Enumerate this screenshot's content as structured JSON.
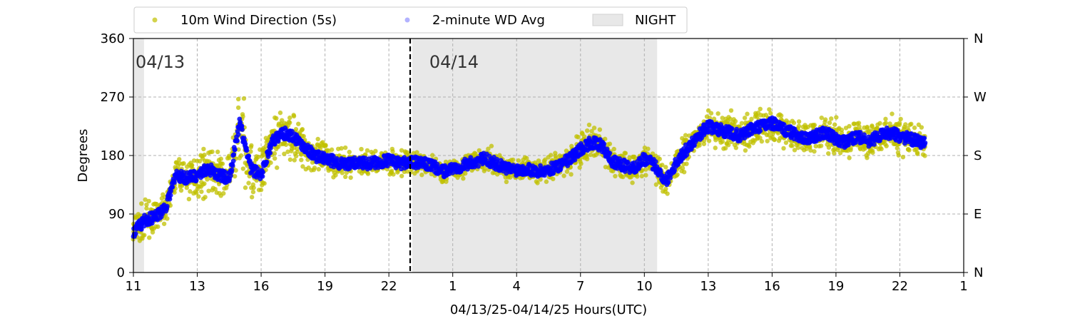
{
  "chart_data": {
    "type": "scatter",
    "xlabel": "04/13/25-04/14/25  Hours(UTC)",
    "ylabel": "Degrees",
    "x_unit": "hours",
    "xlim": [
      11,
      49
    ],
    "ylim": [
      0,
      360
    ],
    "x_ticks": [
      {
        "x": 11,
        "label": "11"
      },
      {
        "x": 14,
        "label": "13"
      },
      {
        "x": 17,
        "label": "16"
      },
      {
        "x": 20,
        "label": "19"
      },
      {
        "x": 23,
        "label": "22"
      },
      {
        "x": 26,
        "label": "1"
      },
      {
        "x": 29,
        "label": "4"
      },
      {
        "x": 32,
        "label": "7"
      },
      {
        "x": 35,
        "label": "10"
      },
      {
        "x": 38,
        "label": "13"
      },
      {
        "x": 41,
        "label": "16"
      },
      {
        "x": 44,
        "label": "19"
      },
      {
        "x": 47,
        "label": "22"
      },
      {
        "x": 50,
        "label": "1"
      }
    ],
    "y_ticks": [
      0,
      90,
      180,
      270,
      360
    ],
    "right_ticks": [
      {
        "y": 0,
        "label": "N"
      },
      {
        "y": 90,
        "label": "E"
      },
      {
        "y": 180,
        "label": "S"
      },
      {
        "y": 270,
        "label": "W"
      },
      {
        "y": 360,
        "label": "N"
      }
    ],
    "grid": true,
    "legend_position": "top",
    "night_bands": [
      [
        11,
        11.5
      ],
      [
        24.1,
        35.6
      ]
    ],
    "day_marker": {
      "x": 24.0,
      "style": "dashed"
    },
    "day_labels": [
      {
        "x": 11.1,
        "label": "04/13"
      },
      {
        "x": 24.9,
        "label": "04/14"
      }
    ],
    "colors": {
      "wd": "#c0c000",
      "avg": "#0000ff",
      "night": "#e8e8e8"
    },
    "series": [
      {
        "name": "10m Wind Direction (5s)",
        "marker": "circle",
        "x": [
          11.0,
          11.5,
          12.0,
          12.5,
          13.0,
          13.5,
          14.0,
          14.5,
          15.0,
          15.5,
          16.0,
          16.5,
          17.0,
          17.5,
          18.0,
          18.5,
          19.0,
          19.5,
          20.0,
          20.5,
          21.0,
          21.5,
          22.0,
          22.5,
          23.0,
          23.5,
          24.0,
          24.5,
          25.0,
          25.5,
          26.0,
          26.5,
          27.0,
          27.5,
          28.0,
          28.5,
          29.0,
          29.5,
          30.0,
          30.5,
          31.0,
          31.5,
          32.0,
          32.5,
          33.0,
          33.5,
          34.0,
          34.5,
          35.0,
          35.5,
          36.0,
          36.5,
          37.0,
          37.5,
          38.0,
          38.5,
          39.0,
          39.5,
          40.0,
          40.5,
          41.0,
          41.5,
          42.0,
          42.5,
          43.0,
          43.5,
          44.0,
          44.5,
          45.0,
          45.5,
          46.0,
          46.5,
          47.0,
          47.5,
          48.0
        ],
        "y": [
          60,
          80,
          85,
          100,
          150,
          145,
          150,
          160,
          150,
          145,
          230,
          160,
          150,
          200,
          215,
          210,
          195,
          180,
          175,
          170,
          165,
          170,
          168,
          170,
          172,
          168,
          170,
          168,
          165,
          155,
          160,
          165,
          170,
          175,
          168,
          160,
          158,
          160,
          155,
          158,
          165,
          175,
          190,
          200,
          195,
          170,
          165,
          160,
          175,
          165,
          140,
          170,
          190,
          210,
          225,
          220,
          215,
          210,
          220,
          225,
          230,
          220,
          215,
          205,
          210,
          215,
          205,
          200,
          210,
          200,
          210,
          215,
          210,
          205,
          200
        ],
        "spread": [
          35,
          30,
          25,
          20,
          30,
          30,
          35,
          40,
          35,
          40,
          60,
          60,
          50,
          45,
          40,
          40,
          35,
          30,
          30,
          25,
          22,
          20,
          20,
          20,
          20,
          22,
          20,
          20,
          18,
          18,
          18,
          20,
          20,
          22,
          20,
          20,
          18,
          18,
          18,
          20,
          22,
          25,
          30,
          30,
          28,
          28,
          25,
          25,
          25,
          25,
          25,
          30,
          30,
          30,
          30,
          30,
          30,
          28,
          30,
          30,
          32,
          30,
          30,
          28,
          28,
          28,
          30,
          28,
          28,
          28,
          28,
          28,
          28,
          25,
          25
        ]
      },
      {
        "name": "2-minute WD Avg",
        "marker": "circle",
        "x": [
          11.0,
          11.5,
          12.0,
          12.5,
          13.0,
          13.5,
          14.0,
          14.5,
          15.0,
          15.5,
          16.0,
          16.5,
          17.0,
          17.5,
          18.0,
          18.5,
          19.0,
          19.5,
          20.0,
          20.5,
          21.0,
          21.5,
          22.0,
          22.5,
          23.0,
          23.5,
          24.0,
          24.5,
          25.0,
          25.5,
          26.0,
          26.5,
          27.0,
          27.5,
          28.0,
          28.5,
          29.0,
          29.5,
          30.0,
          30.5,
          31.0,
          31.5,
          32.0,
          32.5,
          33.0,
          33.5,
          34.0,
          34.5,
          35.0,
          35.5,
          36.0,
          36.5,
          37.0,
          37.5,
          38.0,
          38.5,
          39.0,
          39.5,
          40.0,
          40.5,
          41.0,
          41.5,
          42.0,
          42.5,
          43.0,
          43.5,
          44.0,
          44.5,
          45.0,
          45.5,
          46.0,
          46.5,
          47.0,
          47.5,
          48.0
        ],
        "y": [
          60,
          80,
          85,
          100,
          150,
          145,
          150,
          160,
          150,
          145,
          230,
          160,
          150,
          200,
          215,
          210,
          195,
          180,
          175,
          170,
          165,
          170,
          168,
          170,
          172,
          168,
          170,
          168,
          165,
          155,
          160,
          165,
          170,
          175,
          168,
          160,
          158,
          160,
          155,
          158,
          165,
          175,
          190,
          200,
          195,
          170,
          165,
          160,
          175,
          165,
          140,
          170,
          190,
          210,
          225,
          220,
          215,
          210,
          220,
          225,
          230,
          220,
          215,
          205,
          210,
          215,
          205,
          200,
          210,
          200,
          210,
          215,
          210,
          205,
          200
        ]
      }
    ]
  }
}
